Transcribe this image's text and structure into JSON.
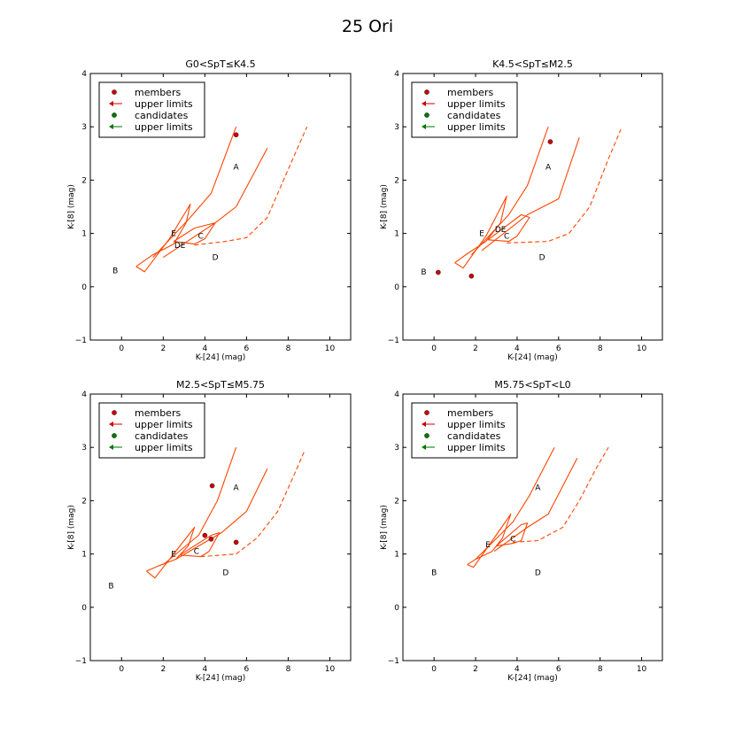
{
  "suptitle": "25 Ori",
  "colors": {
    "model": "#ff4500",
    "member": "#cc0000",
    "candidate": "#007700"
  },
  "legend": [
    {
      "label": "members",
      "marker": "dot",
      "color": "#cc0000"
    },
    {
      "label": "upper limits",
      "marker": "arrow",
      "color": "#cc0000"
    },
    {
      "label": "candidates",
      "marker": "dot",
      "color": "#007700"
    },
    {
      "label": "upper limits",
      "marker": "arrow",
      "color": "#007700"
    }
  ],
  "chart_data": [
    {
      "type": "scatter",
      "title": "G0<SpT≤K4.5",
      "xlabel": "K-[24] (mag)",
      "ylabel": "K-[8] (mag)",
      "xlim": [
        -1.5,
        11
      ],
      "ylim": [
        -1,
        4
      ],
      "xticks": [
        "0",
        "2",
        "4",
        "6",
        "8",
        "10"
      ],
      "yticks": [
        "−1",
        "0",
        "1",
        "2",
        "3",
        "4"
      ],
      "legend_placement": "upper-left",
      "members": [
        {
          "x": 5.5,
          "y": 2.85
        }
      ],
      "member_upper_limits": [],
      "candidates": [],
      "candidate_upper_limits": [],
      "region_labels": [
        {
          "text": "A",
          "x": 5.5,
          "y": 2.25
        },
        {
          "text": "B",
          "x": -0.3,
          "y": 0.3
        },
        {
          "text": "C",
          "x": 3.8,
          "y": 0.95
        },
        {
          "text": "D",
          "x": 4.5,
          "y": 0.55
        },
        {
          "text": "DE",
          "x": 2.8,
          "y": 0.78
        },
        {
          "text": "E",
          "x": 2.5,
          "y": 1.0
        }
      ],
      "model_lines": [
        {
          "style": "solid",
          "points": [
            [
              0.7,
              0.38
            ],
            [
              1.1,
              0.28
            ],
            [
              2.3,
              0.9
            ],
            [
              3.3,
              1.55
            ],
            [
              3.1,
              1.2
            ],
            [
              2.5,
              0.8
            ],
            [
              1.5,
              0.6
            ],
            [
              0.7,
              0.38
            ]
          ]
        },
        {
          "style": "solid",
          "points": [
            [
              1.5,
              0.55
            ],
            [
              3.3,
              1.3
            ],
            [
              4.3,
              1.75
            ],
            [
              5.5,
              3.0
            ]
          ]
        },
        {
          "style": "solid",
          "points": [
            [
              2.0,
              0.55
            ],
            [
              4.5,
              1.2
            ],
            [
              5.5,
              1.5
            ],
            [
              7.0,
              2.6
            ]
          ]
        },
        {
          "style": "solid",
          "points": [
            [
              2.5,
              0.85
            ],
            [
              3.5,
              1.1
            ],
            [
              4.5,
              1.2
            ],
            [
              4.0,
              0.9
            ],
            [
              3.5,
              0.8
            ],
            [
              2.5,
              0.85
            ]
          ]
        },
        {
          "style": "dashed",
          "points": [
            [
              3.5,
              0.78
            ],
            [
              5.0,
              0.85
            ],
            [
              6.0,
              0.92
            ],
            [
              7.0,
              1.3
            ],
            [
              8.0,
              2.2
            ],
            [
              8.9,
              3.0
            ]
          ]
        }
      ]
    },
    {
      "type": "scatter",
      "title": "K4.5<SpT≤M2.5",
      "xlabel": "K-[24] (mag)",
      "ylabel": "K-[8] (mag)",
      "xlim": [
        -1.5,
        11
      ],
      "ylim": [
        -1,
        4
      ],
      "xticks": [
        "0",
        "2",
        "4",
        "6",
        "8",
        "10"
      ],
      "yticks": [
        "−1",
        "0",
        "1",
        "2",
        "3",
        "4"
      ],
      "legend_placement": "upper-left",
      "members": [
        {
          "x": 5.6,
          "y": 2.72
        },
        {
          "x": 0.2,
          "y": 0.27
        },
        {
          "x": 1.8,
          "y": 0.2
        }
      ],
      "member_upper_limits": [],
      "candidates": [],
      "candidate_upper_limits": [],
      "region_labels": [
        {
          "text": "A",
          "x": 5.5,
          "y": 2.25
        },
        {
          "text": "B",
          "x": -0.5,
          "y": 0.28
        },
        {
          "text": "C",
          "x": 3.5,
          "y": 0.95
        },
        {
          "text": "D",
          "x": 5.2,
          "y": 0.55
        },
        {
          "text": "DE",
          "x": 3.2,
          "y": 1.08
        },
        {
          "text": "E",
          "x": 2.3,
          "y": 1.0
        }
      ],
      "model_lines": [
        {
          "style": "solid",
          "points": [
            [
              1.0,
              0.45
            ],
            [
              1.4,
              0.35
            ],
            [
              2.5,
              0.95
            ],
            [
              3.5,
              1.7
            ],
            [
              3.2,
              1.2
            ],
            [
              2.5,
              0.85
            ],
            [
              1.6,
              0.62
            ],
            [
              1.0,
              0.45
            ]
          ]
        },
        {
          "style": "solid",
          "points": [
            [
              1.8,
              0.6
            ],
            [
              3.6,
              1.35
            ],
            [
              4.5,
              1.9
            ],
            [
              5.5,
              3.0
            ]
          ]
        },
        {
          "style": "solid",
          "points": [
            [
              2.3,
              0.68
            ],
            [
              4.5,
              1.35
            ],
            [
              6.0,
              1.65
            ],
            [
              7.0,
              2.8
            ]
          ]
        },
        {
          "style": "solid",
          "points": [
            [
              2.6,
              0.88
            ],
            [
              4.2,
              1.35
            ],
            [
              4.6,
              1.3
            ],
            [
              4.0,
              0.95
            ],
            [
              3.6,
              0.85
            ],
            [
              2.6,
              0.88
            ]
          ]
        },
        {
          "style": "dashed",
          "points": [
            [
              3.5,
              0.82
            ],
            [
              5.5,
              0.85
            ],
            [
              6.5,
              1.0
            ],
            [
              7.5,
              1.5
            ],
            [
              8.4,
              2.4
            ],
            [
              9.0,
              2.95
            ]
          ]
        }
      ]
    },
    {
      "type": "scatter",
      "title": "M2.5<SpT≤M5.75",
      "xlabel": "K-[24] (mag)",
      "ylabel": "K-[8] (mag)",
      "xlim": [
        -1.5,
        11
      ],
      "ylim": [
        -1,
        4
      ],
      "xticks": [
        "0",
        "2",
        "4",
        "6",
        "8",
        "10"
      ],
      "yticks": [
        "−1",
        "0",
        "1",
        "2",
        "3",
        "4"
      ],
      "legend_placement": "upper-left",
      "members": [
        {
          "x": 4.35,
          "y": 2.28
        },
        {
          "x": 4.0,
          "y": 1.35
        },
        {
          "x": 4.3,
          "y": 1.28
        },
        {
          "x": 5.5,
          "y": 1.22
        }
      ],
      "member_upper_limits": [],
      "candidates": [],
      "candidate_upper_limits": [],
      "region_labels": [
        {
          "text": "A",
          "x": 5.5,
          "y": 2.25
        },
        {
          "text": "B",
          "x": -0.5,
          "y": 0.4
        },
        {
          "text": "C",
          "x": 3.6,
          "y": 1.05
        },
        {
          "text": "D",
          "x": 5.0,
          "y": 0.65
        },
        {
          "text": "E",
          "x": 2.5,
          "y": 1.0
        }
      ],
      "model_lines": [
        {
          "style": "solid",
          "points": [
            [
              1.2,
              0.68
            ],
            [
              1.6,
              0.55
            ],
            [
              2.7,
              1.1
            ],
            [
              3.5,
              1.5
            ],
            [
              3.2,
              1.15
            ],
            [
              2.6,
              0.9
            ],
            [
              1.8,
              0.78
            ],
            [
              1.2,
              0.68
            ]
          ]
        },
        {
          "style": "solid",
          "points": [
            [
              2.0,
              0.8
            ],
            [
              3.7,
              1.35
            ],
            [
              4.6,
              2.0
            ],
            [
              5.5,
              3.0
            ]
          ]
        },
        {
          "style": "solid",
          "points": [
            [
              2.6,
              0.9
            ],
            [
              4.8,
              1.4
            ],
            [
              6.0,
              1.8
            ],
            [
              7.0,
              2.6
            ]
          ]
        },
        {
          "style": "solid",
          "points": [
            [
              2.8,
              0.98
            ],
            [
              4.3,
              1.35
            ],
            [
              4.7,
              1.4
            ],
            [
              4.2,
              1.05
            ],
            [
              3.8,
              0.95
            ],
            [
              2.8,
              0.98
            ]
          ]
        },
        {
          "style": "dashed",
          "points": [
            [
              3.8,
              0.95
            ],
            [
              5.5,
              1.0
            ],
            [
              6.5,
              1.3
            ],
            [
              7.5,
              1.8
            ],
            [
              8.3,
              2.5
            ],
            [
              8.8,
              2.95
            ]
          ]
        }
      ]
    },
    {
      "type": "scatter",
      "title": "M5.75<SpT<L0",
      "xlabel": "K-[24] (mag)",
      "ylabel": "K-[8] (mag)",
      "xlim": [
        -1.5,
        11
      ],
      "ylim": [
        -1,
        4
      ],
      "xticks": [
        "0",
        "2",
        "4",
        "6",
        "8",
        "10"
      ],
      "yticks": [
        "−1",
        "0",
        "1",
        "2",
        "3",
        "4"
      ],
      "legend_placement": "upper-left",
      "members": [],
      "member_upper_limits": [],
      "candidates": [],
      "candidate_upper_limits": [],
      "region_labels": [
        {
          "text": "A",
          "x": 5.0,
          "y": 2.25
        },
        {
          "text": "B",
          "x": 0.0,
          "y": 0.65
        },
        {
          "text": "C",
          "x": 3.8,
          "y": 1.28
        },
        {
          "text": "D",
          "x": 5.0,
          "y": 0.65
        },
        {
          "text": "E",
          "x": 2.6,
          "y": 1.18
        }
      ],
      "model_lines": [
        {
          "style": "solid",
          "points": [
            [
              1.6,
              0.8
            ],
            [
              1.9,
              0.75
            ],
            [
              2.9,
              1.3
            ],
            [
              3.7,
              1.75
            ],
            [
              3.3,
              1.3
            ],
            [
              2.8,
              1.05
            ],
            [
              2.0,
              0.9
            ],
            [
              1.6,
              0.8
            ]
          ]
        },
        {
          "style": "solid",
          "points": [
            [
              2.0,
              0.9
            ],
            [
              3.8,
              1.6
            ],
            [
              4.6,
              2.1
            ],
            [
              5.8,
              3.0
            ]
          ]
        },
        {
          "style": "solid",
          "points": [
            [
              2.9,
              1.05
            ],
            [
              4.5,
              1.5
            ],
            [
              5.5,
              1.75
            ],
            [
              6.9,
              2.8
            ]
          ]
        },
        {
          "style": "solid",
          "points": [
            [
              3.0,
              1.15
            ],
            [
              4.2,
              1.55
            ],
            [
              4.5,
              1.58
            ],
            [
              4.2,
              1.25
            ],
            [
              3.8,
              1.2
            ],
            [
              3.0,
              1.15
            ]
          ]
        },
        {
          "style": "dashed",
          "points": [
            [
              3.8,
              1.22
            ],
            [
              5.0,
              1.25
            ],
            [
              6.2,
              1.5
            ],
            [
              7.0,
              2.0
            ],
            [
              7.8,
              2.6
            ],
            [
              8.4,
              3.0
            ]
          ]
        }
      ]
    }
  ]
}
